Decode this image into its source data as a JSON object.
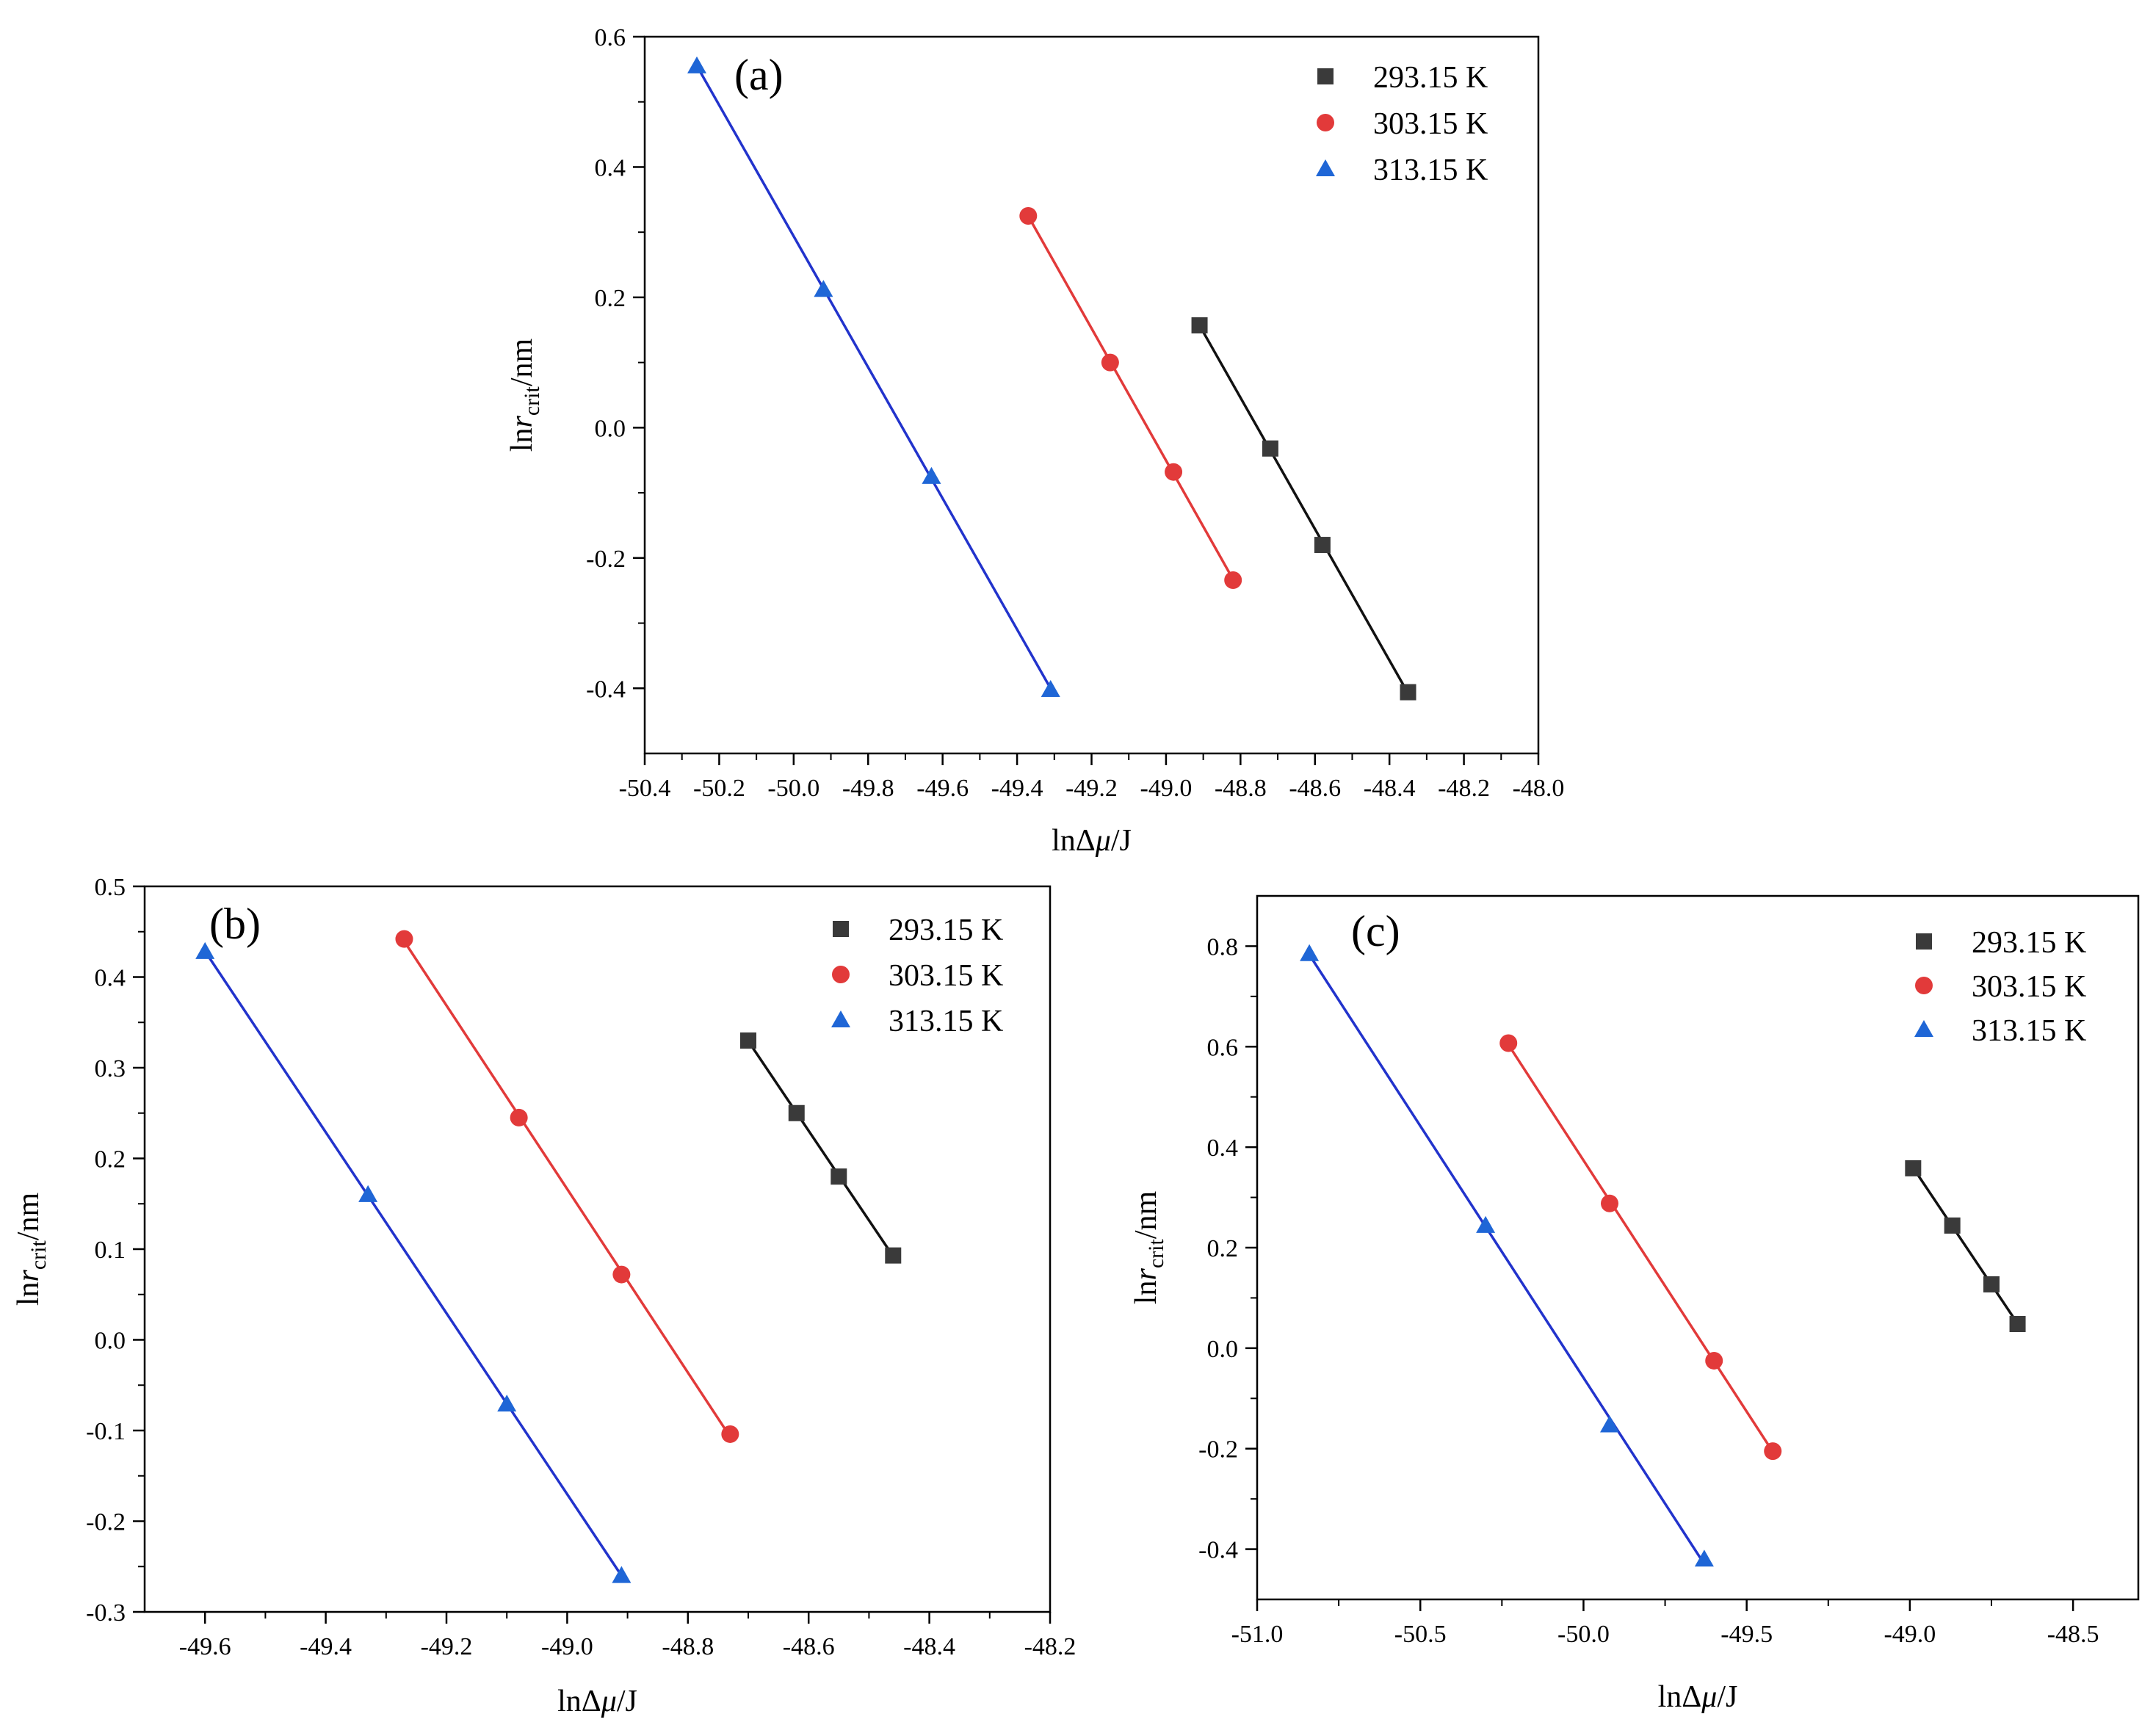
{
  "chart_data": [
    {
      "type": "scatter",
      "title": "(a)",
      "xlabel": "lnΔμ/J",
      "ylabel": "lnr_crit/nm",
      "xlim": [
        -50.4,
        -48.0
      ],
      "ylim": [
        -0.5,
        0.6
      ],
      "xticks": [
        -50.4,
        -50.2,
        -50.0,
        -49.8,
        -49.6,
        -49.4,
        -49.2,
        -49.0,
        -48.8,
        -48.6,
        -48.4,
        -48.2,
        -48.0
      ],
      "xtick_labels": [
        "-50.4",
        "-50.2",
        "-50.0",
        "-49.8",
        "-49.6",
        "-49.4",
        "-49.2",
        "-49.0",
        "-48.8",
        "-48.6",
        "-48.4",
        "-48.2",
        "-48.0"
      ],
      "yticks": [
        -0.4,
        -0.2,
        0.0,
        0.2,
        0.4,
        0.6
      ],
      "ytick_labels": [
        "-0.4",
        "-0.2",
        "0.0",
        "0.2",
        "0.4",
        "0.6"
      ],
      "legend_position": "top-right",
      "series": [
        {
          "name": "293.15 K",
          "color": "#3a3a3a",
          "line_color": "#111111",
          "marker": "square",
          "x": [
            -48.91,
            -48.72,
            -48.58,
            -48.35
          ],
          "y": [
            0.157,
            -0.032,
            -0.18,
            -0.406
          ]
        },
        {
          "name": "303.15 K",
          "color": "#e23a3a",
          "line_color": "#e23a3a",
          "marker": "circle",
          "x": [
            -49.37,
            -49.15,
            -48.98,
            -48.82
          ],
          "y": [
            0.325,
            0.1,
            -0.068,
            -0.234
          ]
        },
        {
          "name": "313.15 K",
          "color": "#1f66d6",
          "line_color": "#2233cc",
          "marker": "triangle",
          "x": [
            -50.26,
            -49.92,
            -49.63,
            -49.31
          ],
          "y": [
            0.555,
            0.212,
            -0.075,
            -0.402
          ]
        }
      ]
    },
    {
      "type": "scatter",
      "title": "(b)",
      "xlabel": "lnΔμ/J",
      "ylabel": "lnr_crit/nm",
      "xlim": [
        -49.7,
        -48.2
      ],
      "ylim": [
        -0.3,
        0.5
      ],
      "xticks": [
        -49.6,
        -49.4,
        -49.2,
        -49.0,
        -48.8,
        -48.6,
        -48.4,
        -48.2
      ],
      "xtick_labels": [
        "-49.6",
        "-49.4",
        "-49.2",
        "-49.0",
        "-48.8",
        "-48.6",
        "-48.4",
        "-48.2"
      ],
      "yticks": [
        -0.3,
        -0.2,
        -0.1,
        0.0,
        0.1,
        0.2,
        0.3,
        0.4,
        0.5
      ],
      "ytick_labels": [
        "-0.3",
        "-0.2",
        "-0.1",
        "0.0",
        "0.1",
        "0.2",
        "0.3",
        "0.4",
        "0.5"
      ],
      "legend_position": "top-right",
      "series": [
        {
          "name": "293.15 K",
          "color": "#3a3a3a",
          "line_color": "#111111",
          "marker": "square",
          "x": [
            -48.7,
            -48.62,
            -48.55,
            -48.46
          ],
          "y": [
            0.33,
            0.25,
            0.18,
            0.093
          ]
        },
        {
          "name": "303.15 K",
          "color": "#e23a3a",
          "line_color": "#e23a3a",
          "marker": "circle",
          "x": [
            -49.27,
            -49.08,
            -48.91,
            -48.73
          ],
          "y": [
            0.442,
            0.245,
            0.072,
            -0.104
          ]
        },
        {
          "name": "313.15 K",
          "color": "#1f66d6",
          "line_color": "#2233cc",
          "marker": "triangle",
          "x": [
            -49.6,
            -49.33,
            -49.1,
            -48.91
          ],
          "y": [
            0.428,
            0.16,
            -0.071,
            -0.26
          ]
        }
      ]
    },
    {
      "type": "scatter",
      "title": "(c)",
      "xlabel": "lnΔμ/J",
      "ylabel": "lnr_crit/nm",
      "xlim": [
        -51.0,
        -48.3
      ],
      "ylim": [
        -0.5,
        0.9
      ],
      "xticks": [
        -51.0,
        -50.5,
        -50.0,
        -49.5,
        -49.0,
        -48.5
      ],
      "xtick_labels": [
        "-51.0",
        "-50.5",
        "-50.0",
        "-49.5",
        "-49.0",
        "-48.5"
      ],
      "yticks": [
        -0.4,
        -0.2,
        0.0,
        0.2,
        0.4,
        0.6,
        0.8
      ],
      "ytick_labels": [
        "-0.4",
        "-0.2",
        "0.0",
        "0.2",
        "0.4",
        "0.6",
        "0.8"
      ],
      "legend_position": "top-right",
      "series": [
        {
          "name": "293.15 K",
          "color": "#3a3a3a",
          "line_color": "#111111",
          "marker": "square",
          "x": [
            -48.99,
            -48.87,
            -48.75,
            -48.67
          ],
          "y": [
            0.358,
            0.244,
            0.127,
            0.048
          ]
        },
        {
          "name": "303.15 K",
          "color": "#e23a3a",
          "line_color": "#e23a3a",
          "marker": "circle",
          "x": [
            -50.23,
            -49.92,
            -49.6,
            -49.42
          ],
          "y": [
            0.607,
            0.288,
            -0.025,
            -0.205
          ]
        },
        {
          "name": "313.15 K",
          "color": "#1f66d6",
          "line_color": "#2233cc",
          "marker": "triangle",
          "x": [
            -50.84,
            -50.3,
            -49.92,
            -49.63
          ],
          "y": [
            0.785,
            0.244,
            -0.153,
            -0.42
          ]
        }
      ]
    }
  ]
}
